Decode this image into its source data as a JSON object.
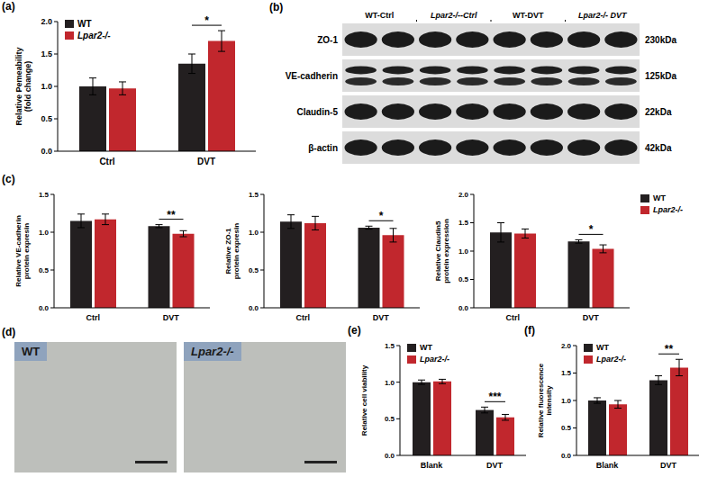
{
  "chart_data": [
    {
      "panel": "(a)",
      "type": "bar",
      "y_label": "Relative Pemeability (fold change)",
      "categories": [
        "Ctrl",
        "DVT"
      ],
      "series": [
        {
          "name": "WT",
          "color": "#231f20",
          "values": [
            1.0,
            1.35
          ],
          "error": [
            0.13,
            0.15
          ]
        },
        {
          "name": "Lpar2-/-",
          "color": "#c1272d",
          "values": [
            0.97,
            1.7
          ],
          "error": [
            0.1,
            0.16
          ]
        }
      ],
      "ylim": [
        0,
        2
      ],
      "yticks": [
        {
          "value": 0,
          "label": "0.0"
        },
        0.5,
        {
          "value": 1,
          "label": "1.0"
        },
        1.5,
        {
          "value": 2,
          "label": "2.0"
        }
      ],
      "legend": "upper left",
      "annotations": [
        {
          "category": "DVT",
          "text": "*"
        }
      ]
    },
    {
      "panel": "(c)",
      "type": "bar",
      "y_label": "Relative VE-cadherin protein expresin",
      "categories": [
        "Ctrl",
        "DVT"
      ],
      "series": [
        {
          "name": "WT",
          "color": "#231f20",
          "values": [
            1.15,
            1.08
          ],
          "error": [
            0.09,
            0.02
          ]
        },
        {
          "name": "Lpar2-/-",
          "color": "#c1272d",
          "values": [
            1.17,
            0.98
          ],
          "error": [
            0.07,
            0.04
          ]
        }
      ],
      "ylim": [
        0,
        1.5
      ],
      "yticks": [
        {
          "value": 0,
          "label": "0.0"
        },
        0.5,
        {
          "value": 1,
          "label": "1.0"
        },
        1.5
      ],
      "annotations": [
        {
          "category": "DVT",
          "text": "**"
        }
      ]
    },
    {
      "type": "bar",
      "y_label": "Relative ZO-1 protein expresin",
      "categories": [
        "Ctrl",
        "DVT"
      ],
      "series": [
        {
          "name": "WT",
          "color": "#231f20",
          "values": [
            1.14,
            1.06
          ],
          "error": [
            0.09,
            0.02
          ]
        },
        {
          "name": "Lpar2-/-",
          "color": "#c1272d",
          "values": [
            1.12,
            0.96
          ],
          "error": [
            0.09,
            0.09
          ]
        }
      ],
      "ylim": [
        0,
        1.5
      ],
      "yticks": [
        {
          "value": 0,
          "label": "0.0"
        },
        0.5,
        {
          "value": 1,
          "label": "1.0"
        },
        1.5
      ],
      "annotations": [
        {
          "category": "DVT",
          "text": "*"
        }
      ]
    },
    {
      "type": "bar",
      "y_label": "Relative Claudin5 protein expression",
      "categories": [
        "Ctrl",
        "DVT"
      ],
      "series": [
        {
          "name": "WT",
          "color": "#231f20",
          "values": [
            1.33,
            1.17
          ],
          "error": [
            0.17,
            0.03
          ]
        },
        {
          "name": "Lpar2-/-",
          "color": "#c1272d",
          "values": [
            1.31,
            1.04
          ],
          "error": [
            0.08,
            0.07
          ]
        }
      ],
      "ylim": [
        0,
        2
      ],
      "yticks": [
        {
          "value": 0,
          "label": "0.0"
        },
        0.5,
        {
          "value": 1,
          "label": "1.0"
        },
        1.5,
        {
          "value": 2,
          "label": "2.0"
        }
      ],
      "legend": "right",
      "annotations": [
        {
          "category": "DVT",
          "text": "*"
        }
      ]
    },
    {
      "panel": "(e)",
      "type": "bar",
      "y_label": "Relative cell viability",
      "categories": [
        "Blank",
        "DVT"
      ],
      "series": [
        {
          "name": "WT",
          "color": "#231f20",
          "values": [
            1.0,
            0.62
          ],
          "error": [
            0.03,
            0.04
          ]
        },
        {
          "name": "Lpar2-/-",
          "color": "#c1272d",
          "values": [
            1.01,
            0.52
          ],
          "error": [
            0.03,
            0.04
          ]
        }
      ],
      "ylim": [
        0,
        1.5
      ],
      "yticks": [
        {
          "value": 0,
          "label": "0.0"
        },
        0.5,
        {
          "value": 1,
          "label": "1.0"
        },
        1.5
      ],
      "legend": "upper left",
      "annotations": [
        {
          "category": "DVT",
          "text": "***"
        }
      ]
    },
    {
      "panel": "(f)",
      "type": "bar",
      "y_label": "Relative fluorescence intensity",
      "categories": [
        "Blank",
        "DVT"
      ],
      "series": [
        {
          "name": "WT",
          "color": "#231f20",
          "values": [
            1.0,
            1.37
          ],
          "error": [
            0.05,
            0.08
          ]
        },
        {
          "name": "Lpar2-/-",
          "color": "#c1272d",
          "values": [
            0.93,
            1.6
          ],
          "error": [
            0.07,
            0.15
          ]
        }
      ],
      "ylim": [
        0,
        2
      ],
      "yticks": [
        {
          "value": 0,
          "label": "0.0"
        },
        0.5,
        {
          "value": 1,
          "label": "1.0"
        },
        1.5,
        {
          "value": 2,
          "label": "2.0"
        }
      ],
      "legend": "upper left",
      "annotations": [
        {
          "category": "DVT",
          "text": "**"
        }
      ]
    }
  ],
  "blot": {
    "panel": "(b)",
    "columns": [
      "WT-Ctrl",
      "Lpar2-/--Ctrl",
      "WT-DVT",
      "Lpar2-/- DVT"
    ],
    "rows": [
      {
        "name": "ZO-1",
        "size": "230kDa"
      },
      {
        "name": "VE-cadherin",
        "size": "125kDa"
      },
      {
        "name": "Claudin-5",
        "size": "22kDa"
      },
      {
        "name": "β-actin",
        "size": "42kDa"
      }
    ]
  },
  "micrographs": {
    "panel": "(d)",
    "labels": [
      "WT",
      "Lpar2-/-"
    ]
  }
}
